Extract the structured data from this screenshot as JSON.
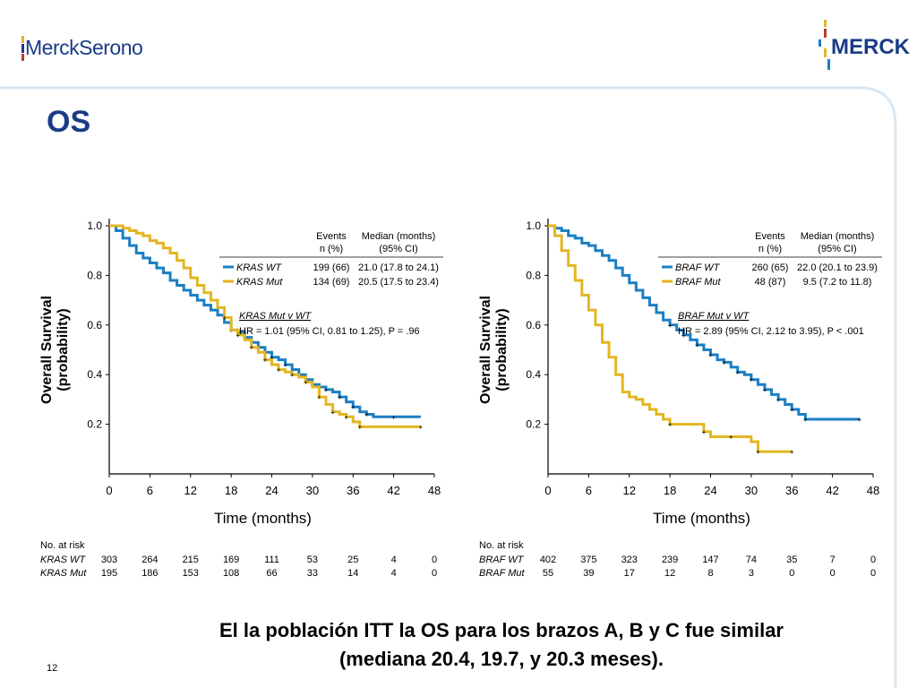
{
  "header": {
    "left_logo": "MerckSerono",
    "right_logo": "MERCK",
    "title": "OS"
  },
  "footer": {
    "line1": "El la población ITT la OS para los brazos A, B y C fue similar",
    "line2": "(mediana 20.4, 19.7, y 20.3 meses).",
    "slide_number": "12"
  },
  "colors": {
    "blue": "#1b7fc4",
    "yellow": "#e3b622",
    "navy": "#1a3b87"
  },
  "chart_data": [
    {
      "type": "line",
      "ylabel_line1": "Overall Survival",
      "ylabel_line2": "(probability)",
      "xlabel": "Time (months)",
      "ylim": [
        0,
        1.0
      ],
      "xlim": [
        0,
        48
      ],
      "xticks": [
        0,
        6,
        12,
        18,
        24,
        30,
        36,
        42,
        48
      ],
      "yticks": [
        0.2,
        0.4,
        0.6,
        0.8,
        1.0
      ],
      "table_header": {
        "events": "Events",
        "events2": "n (%)",
        "median": "Median (months)",
        "median2": "(95% CI)"
      },
      "series": [
        {
          "name": "KRAS WT",
          "color": "blue",
          "events": "199 (66)",
          "median": "21.0 (17.8 to 24.1)",
          "points": [
            [
              0,
              1.0
            ],
            [
              1,
              0.98
            ],
            [
              2,
              0.95
            ],
            [
              3,
              0.92
            ],
            [
              4,
              0.89
            ],
            [
              5,
              0.87
            ],
            [
              6,
              0.85
            ],
            [
              7,
              0.83
            ],
            [
              8,
              0.81
            ],
            [
              9,
              0.78
            ],
            [
              10,
              0.76
            ],
            [
              11,
              0.74
            ],
            [
              12,
              0.72
            ],
            [
              13,
              0.7
            ],
            [
              14,
              0.68
            ],
            [
              15,
              0.66
            ],
            [
              16,
              0.64
            ],
            [
              17,
              0.61
            ],
            [
              18,
              0.58
            ],
            [
              19,
              0.57
            ],
            [
              20,
              0.55
            ],
            [
              21,
              0.53
            ],
            [
              22,
              0.51
            ],
            [
              23,
              0.49
            ],
            [
              24,
              0.47
            ],
            [
              25,
              0.46
            ],
            [
              26,
              0.44
            ],
            [
              27,
              0.42
            ],
            [
              28,
              0.4
            ],
            [
              29,
              0.38
            ],
            [
              30,
              0.36
            ],
            [
              31,
              0.35
            ],
            [
              32,
              0.34
            ],
            [
              33,
              0.33
            ],
            [
              34,
              0.31
            ],
            [
              35,
              0.29
            ],
            [
              36,
              0.27
            ],
            [
              37,
              0.25
            ],
            [
              38,
              0.24
            ],
            [
              39,
              0.23
            ],
            [
              42,
              0.23
            ],
            [
              46,
              0.23
            ]
          ]
        },
        {
          "name": "KRAS Mut",
          "color": "yellow",
          "events": "134 (69)",
          "median": "20.5 (17.5 to 23.4)",
          "points": [
            [
              0,
              1.0
            ],
            [
              2,
              0.99
            ],
            [
              3,
              0.98
            ],
            [
              4,
              0.97
            ],
            [
              5,
              0.96
            ],
            [
              6,
              0.94
            ],
            [
              7,
              0.93
            ],
            [
              8,
              0.91
            ],
            [
              9,
              0.89
            ],
            [
              10,
              0.86
            ],
            [
              11,
              0.83
            ],
            [
              12,
              0.79
            ],
            [
              13,
              0.76
            ],
            [
              14,
              0.73
            ],
            [
              15,
              0.7
            ],
            [
              16,
              0.67
            ],
            [
              17,
              0.63
            ],
            [
              18,
              0.58
            ],
            [
              19,
              0.56
            ],
            [
              20,
              0.54
            ],
            [
              21,
              0.51
            ],
            [
              22,
              0.49
            ],
            [
              23,
              0.46
            ],
            [
              24,
              0.44
            ],
            [
              25,
              0.42
            ],
            [
              26,
              0.41
            ],
            [
              27,
              0.4
            ],
            [
              28,
              0.39
            ],
            [
              29,
              0.37
            ],
            [
              30,
              0.35
            ],
            [
              31,
              0.31
            ],
            [
              32,
              0.28
            ],
            [
              33,
              0.25
            ],
            [
              34,
              0.24
            ],
            [
              35,
              0.23
            ],
            [
              36,
              0.21
            ],
            [
              37,
              0.19
            ],
            [
              40,
              0.19
            ],
            [
              46,
              0.19
            ]
          ]
        }
      ],
      "hr_title": "KRAS Mut v WT",
      "hr_text": "HR = 1.01 (95% CI, 0.81 to 1.25), P = .96",
      "risk_table": {
        "label": "No. at risk",
        "rows": [
          {
            "name": "KRAS WT",
            "values": [
              "303",
              "264",
              "215",
              "169",
              "111",
              "53",
              "25",
              "4",
              "0"
            ]
          },
          {
            "name": "KRAS Mut",
            "values": [
              "195",
              "186",
              "153",
              "108",
              "66",
              "33",
              "14",
              "4",
              "0"
            ]
          }
        ]
      }
    },
    {
      "type": "line",
      "ylabel_line1": "Overall Survival",
      "ylabel_line2": "(probability)",
      "xlabel": "Time (months)",
      "ylim": [
        0,
        1.0
      ],
      "xlim": [
        0,
        48
      ],
      "xticks": [
        0,
        6,
        12,
        18,
        24,
        30,
        36,
        42,
        48
      ],
      "yticks": [
        0.2,
        0.4,
        0.6,
        0.8,
        1.0
      ],
      "table_header": {
        "events": "Events",
        "events2": "n (%)",
        "median": "Median (months)",
        "median2": "(95% CI)"
      },
      "series": [
        {
          "name": "BRAF WT",
          "color": "blue",
          "events": "260 (65)",
          "median": "22.0 (20.1 to 23.9)",
          "points": [
            [
              0,
              1.0
            ],
            [
              1,
              0.99
            ],
            [
              2,
              0.98
            ],
            [
              3,
              0.96
            ],
            [
              4,
              0.95
            ],
            [
              5,
              0.93
            ],
            [
              6,
              0.92
            ],
            [
              7,
              0.9
            ],
            [
              8,
              0.88
            ],
            [
              9,
              0.86
            ],
            [
              10,
              0.83
            ],
            [
              11,
              0.8
            ],
            [
              12,
              0.77
            ],
            [
              13,
              0.74
            ],
            [
              14,
              0.71
            ],
            [
              15,
              0.68
            ],
            [
              16,
              0.65
            ],
            [
              17,
              0.62
            ],
            [
              18,
              0.6
            ],
            [
              19,
              0.58
            ],
            [
              20,
              0.56
            ],
            [
              21,
              0.54
            ],
            [
              22,
              0.52
            ],
            [
              23,
              0.5
            ],
            [
              24,
              0.48
            ],
            [
              25,
              0.46
            ],
            [
              26,
              0.45
            ],
            [
              27,
              0.43
            ],
            [
              28,
              0.41
            ],
            [
              29,
              0.4
            ],
            [
              30,
              0.38
            ],
            [
              31,
              0.36
            ],
            [
              32,
              0.34
            ],
            [
              33,
              0.32
            ],
            [
              34,
              0.3
            ],
            [
              35,
              0.28
            ],
            [
              36,
              0.26
            ],
            [
              37,
              0.24
            ],
            [
              38,
              0.22
            ],
            [
              42,
              0.22
            ],
            [
              46,
              0.22
            ]
          ]
        },
        {
          "name": "BRAF Mut",
          "color": "yellow",
          "events": "48 (87)",
          "median": "9.5 (7.2 to 11.8)",
          "points": [
            [
              0,
              1.0
            ],
            [
              1,
              0.96
            ],
            [
              2,
              0.9
            ],
            [
              3,
              0.84
            ],
            [
              4,
              0.78
            ],
            [
              5,
              0.72
            ],
            [
              6,
              0.66
            ],
            [
              7,
              0.6
            ],
            [
              8,
              0.53
            ],
            [
              9,
              0.47
            ],
            [
              10,
              0.4
            ],
            [
              11,
              0.33
            ],
            [
              12,
              0.31
            ],
            [
              13,
              0.3
            ],
            [
              14,
              0.28
            ],
            [
              15,
              0.26
            ],
            [
              16,
              0.24
            ],
            [
              17,
              0.22
            ],
            [
              18,
              0.2
            ],
            [
              22,
              0.2
            ],
            [
              23,
              0.17
            ],
            [
              24,
              0.15
            ],
            [
              27,
              0.15
            ],
            [
              30,
              0.13
            ],
            [
              31,
              0.09
            ],
            [
              33,
              0.09
            ],
            [
              36,
              0.09
            ]
          ]
        }
      ],
      "hr_title": "BRAF Mut v WT",
      "hr_text": "HR = 2.89 (95% CI, 2.12 to 3.95), P < .001",
      "risk_table": {
        "label": "No. at risk",
        "rows": [
          {
            "name": "BRAF WT",
            "values": [
              "402",
              "375",
              "323",
              "239",
              "147",
              "74",
              "35",
              "7",
              "0"
            ]
          },
          {
            "name": "BRAF Mut",
            "values": [
              "55",
              "39",
              "17",
              "12",
              "8",
              "3",
              "0",
              "0",
              "0"
            ]
          }
        ]
      }
    }
  ]
}
